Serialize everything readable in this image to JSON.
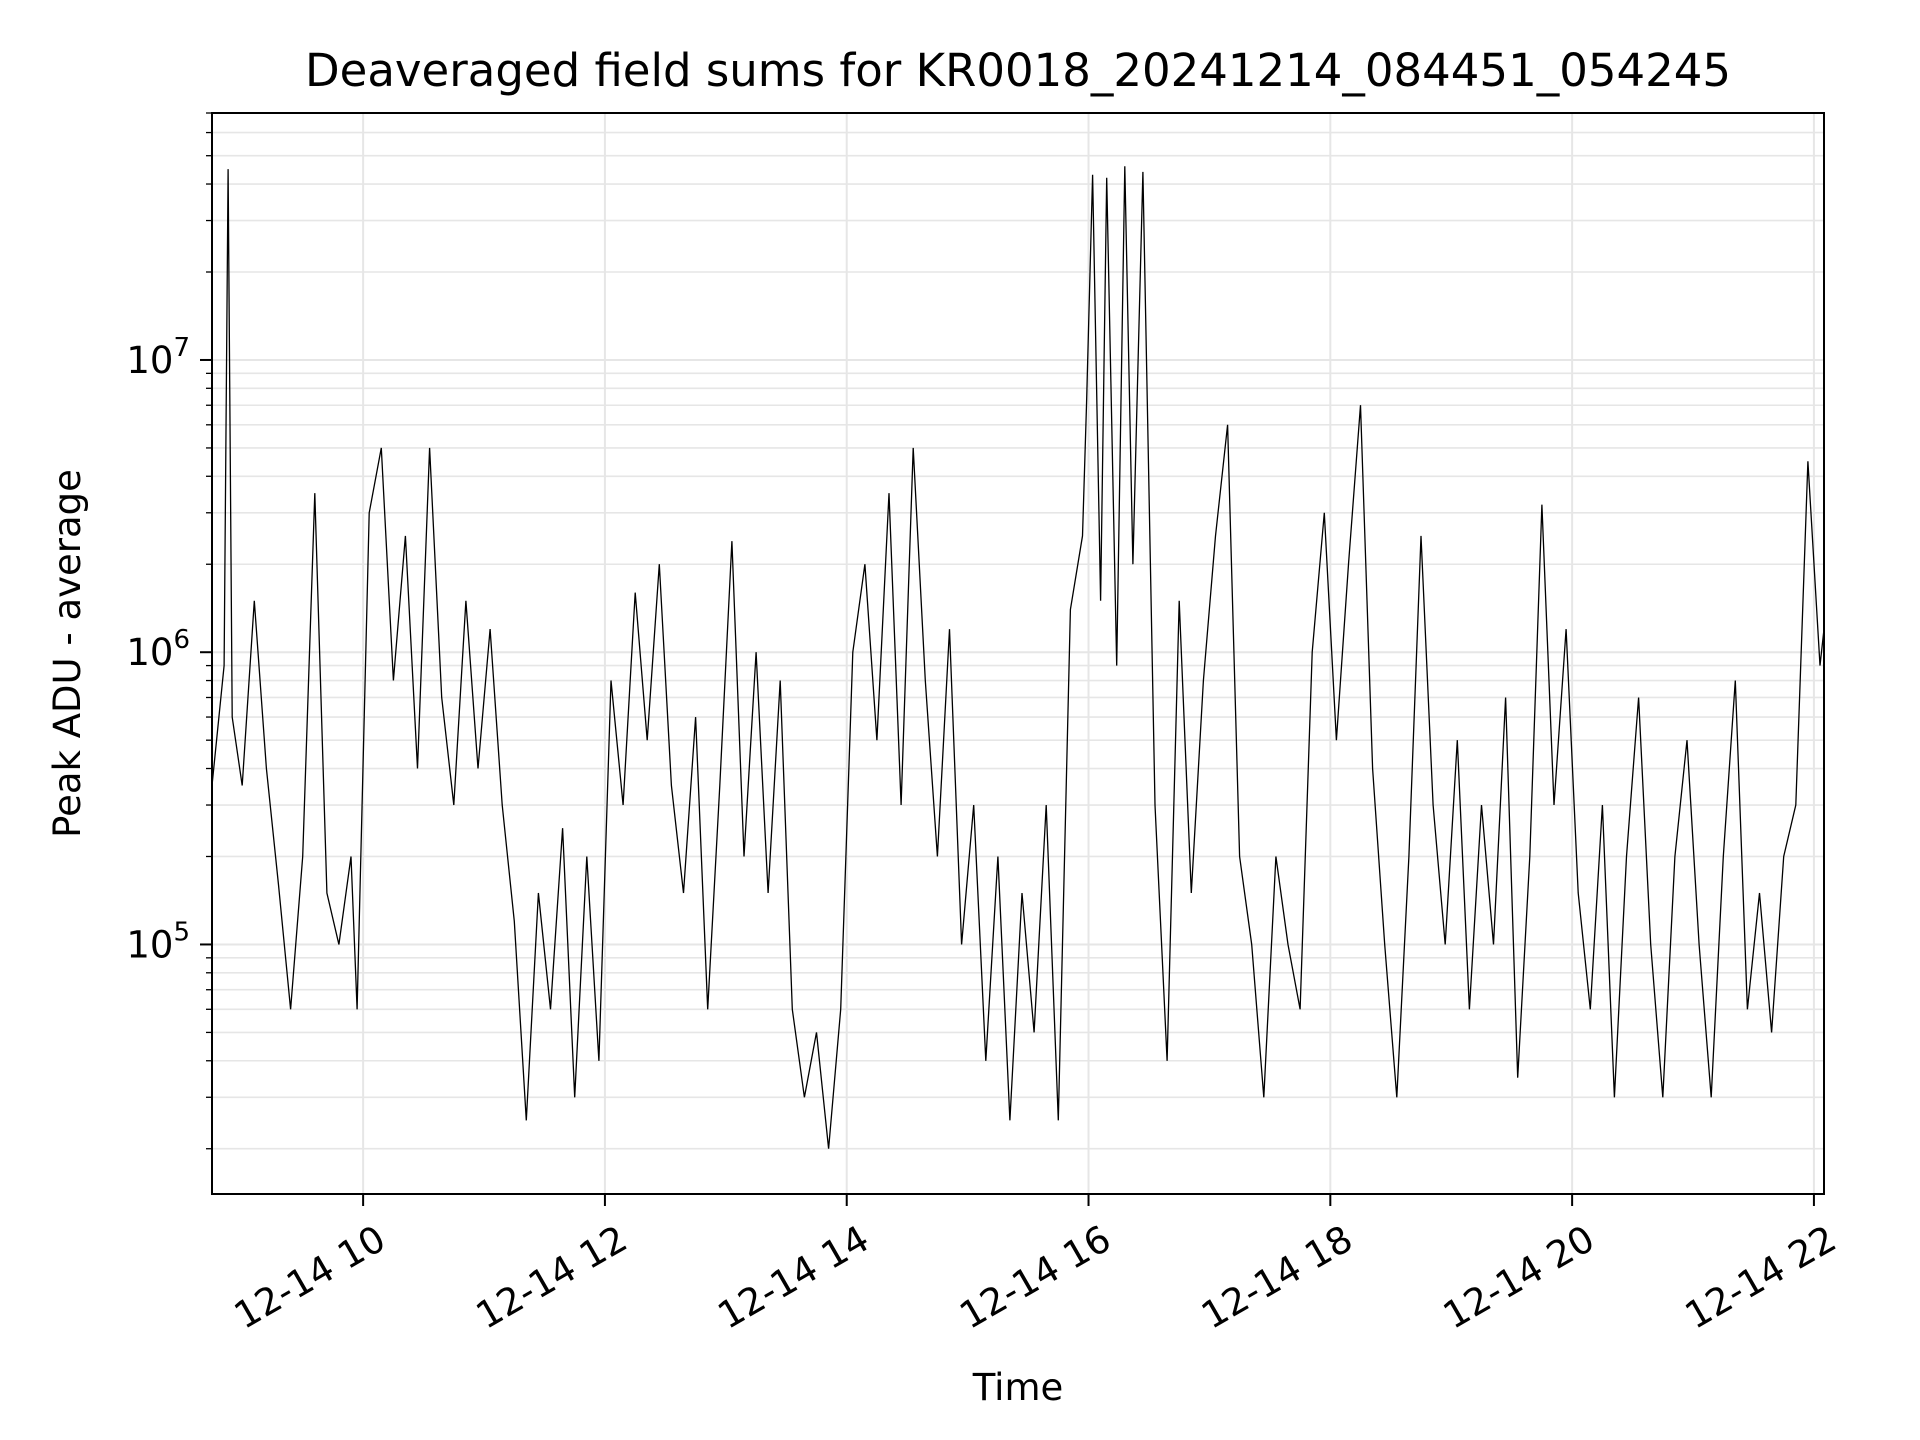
{
  "chart_data": {
    "type": "line",
    "title": "Deaveraged field sums for KR0018_20241214_084451_054245",
    "xlabel": "Time",
    "ylabel": "Peak ADU - average",
    "x_axis": {
      "kind": "time",
      "range": [
        "2024-12-14 08:45",
        "2024-12-14 22:05"
      ],
      "ticks": [
        {
          "time": "2024-12-14 10:00",
          "label": "12-14 10"
        },
        {
          "time": "2024-12-14 12:00",
          "label": "12-14 12"
        },
        {
          "time": "2024-12-14 14:00",
          "label": "12-14 14"
        },
        {
          "time": "2024-12-14 16:00",
          "label": "12-14 16"
        },
        {
          "time": "2024-12-14 18:00",
          "label": "12-14 18"
        },
        {
          "time": "2024-12-14 20:00",
          "label": "12-14 20"
        },
        {
          "time": "2024-12-14 22:00",
          "label": "12-14 22"
        }
      ]
    },
    "y_axis": {
      "scale": "log",
      "range": [
        14000,
        70000000
      ],
      "ticks": [
        {
          "value": 100000,
          "base": "10",
          "exp": "5"
        },
        {
          "value": 1000000,
          "base": "10",
          "exp": "6"
        },
        {
          "value": 10000000,
          "base": "10",
          "exp": "7"
        }
      ]
    },
    "grid": true,
    "line_color": "#000000",
    "series": [
      {
        "points": [
          [
            "2024-12-14 08:45",
            350000
          ],
          [
            "2024-12-14 08:51",
            900000
          ],
          [
            "2024-12-14 08:53",
            45000000
          ],
          [
            "2024-12-14 08:55",
            600000
          ],
          [
            "2024-12-14 09:00",
            350000
          ],
          [
            "2024-12-14 09:06",
            1500000
          ],
          [
            "2024-12-14 09:12",
            400000
          ],
          [
            "2024-12-14 09:18",
            160000
          ],
          [
            "2024-12-14 09:24",
            60000
          ],
          [
            "2024-12-14 09:30",
            200000
          ],
          [
            "2024-12-14 09:36",
            3500000
          ],
          [
            "2024-12-14 09:42",
            150000
          ],
          [
            "2024-12-14 09:48",
            100000
          ],
          [
            "2024-12-14 09:54",
            200000
          ],
          [
            "2024-12-14 09:57",
            60000
          ],
          [
            "2024-12-14 10:03",
            3000000
          ],
          [
            "2024-12-14 10:09",
            5000000
          ],
          [
            "2024-12-14 10:15",
            800000
          ],
          [
            "2024-12-14 10:21",
            2500000
          ],
          [
            "2024-12-14 10:27",
            400000
          ],
          [
            "2024-12-14 10:33",
            5000000
          ],
          [
            "2024-12-14 10:39",
            700000
          ],
          [
            "2024-12-14 10:45",
            300000
          ],
          [
            "2024-12-14 10:51",
            1500000
          ],
          [
            "2024-12-14 10:57",
            400000
          ],
          [
            "2024-12-14 11:03",
            1200000
          ],
          [
            "2024-12-14 11:09",
            300000
          ],
          [
            "2024-12-14 11:15",
            120000
          ],
          [
            "2024-12-14 11:21",
            25000
          ],
          [
            "2024-12-14 11:27",
            150000
          ],
          [
            "2024-12-14 11:33",
            60000
          ],
          [
            "2024-12-14 11:39",
            250000
          ],
          [
            "2024-12-14 11:45",
            30000
          ],
          [
            "2024-12-14 11:51",
            200000
          ],
          [
            "2024-12-14 11:57",
            40000
          ],
          [
            "2024-12-14 12:03",
            800000
          ],
          [
            "2024-12-14 12:09",
            300000
          ],
          [
            "2024-12-14 12:15",
            1600000
          ],
          [
            "2024-12-14 12:21",
            500000
          ],
          [
            "2024-12-14 12:27",
            2000000
          ],
          [
            "2024-12-14 12:33",
            350000
          ],
          [
            "2024-12-14 12:39",
            150000
          ],
          [
            "2024-12-14 12:45",
            600000
          ],
          [
            "2024-12-14 12:51",
            60000
          ],
          [
            "2024-12-14 12:57",
            350000
          ],
          [
            "2024-12-14 13:03",
            2400000
          ],
          [
            "2024-12-14 13:09",
            200000
          ],
          [
            "2024-12-14 13:15",
            1000000
          ],
          [
            "2024-12-14 13:21",
            150000
          ],
          [
            "2024-12-14 13:27",
            800000
          ],
          [
            "2024-12-14 13:33",
            60000
          ],
          [
            "2024-12-14 13:39",
            30000
          ],
          [
            "2024-12-14 13:45",
            50000
          ],
          [
            "2024-12-14 13:51",
            20000
          ],
          [
            "2024-12-14 13:57",
            60000
          ],
          [
            "2024-12-14 14:03",
            1000000
          ],
          [
            "2024-12-14 14:09",
            2000000
          ],
          [
            "2024-12-14 14:15",
            500000
          ],
          [
            "2024-12-14 14:21",
            3500000
          ],
          [
            "2024-12-14 14:27",
            300000
          ],
          [
            "2024-12-14 14:33",
            5000000
          ],
          [
            "2024-12-14 14:39",
            800000
          ],
          [
            "2024-12-14 14:45",
            200000
          ],
          [
            "2024-12-14 14:51",
            1200000
          ],
          [
            "2024-12-14 14:57",
            100000
          ],
          [
            "2024-12-14 15:03",
            300000
          ],
          [
            "2024-12-14 15:09",
            40000
          ],
          [
            "2024-12-14 15:15",
            200000
          ],
          [
            "2024-12-14 15:21",
            25000
          ],
          [
            "2024-12-14 15:27",
            150000
          ],
          [
            "2024-12-14 15:33",
            50000
          ],
          [
            "2024-12-14 15:39",
            300000
          ],
          [
            "2024-12-14 15:45",
            25000
          ],
          [
            "2024-12-14 15:51",
            1400000
          ],
          [
            "2024-12-14 15:57",
            2500000
          ],
          [
            "2024-12-14 15:59",
            7000000
          ],
          [
            "2024-12-14 16:02",
            43000000
          ],
          [
            "2024-12-14 16:06",
            1500000
          ],
          [
            "2024-12-14 16:09",
            42000000
          ],
          [
            "2024-12-14 16:14",
            900000
          ],
          [
            "2024-12-14 16:18",
            46000000
          ],
          [
            "2024-12-14 16:22",
            2000000
          ],
          [
            "2024-12-14 16:27",
            44000000
          ],
          [
            "2024-12-14 16:33",
            300000
          ],
          [
            "2024-12-14 16:39",
            40000
          ],
          [
            "2024-12-14 16:45",
            1500000
          ],
          [
            "2024-12-14 16:51",
            150000
          ],
          [
            "2024-12-14 16:57",
            800000
          ],
          [
            "2024-12-14 17:03",
            2500000
          ],
          [
            "2024-12-14 17:09",
            6000000
          ],
          [
            "2024-12-14 17:15",
            200000
          ],
          [
            "2024-12-14 17:21",
            100000
          ],
          [
            "2024-12-14 17:27",
            30000
          ],
          [
            "2024-12-14 17:33",
            200000
          ],
          [
            "2024-12-14 17:39",
            100000
          ],
          [
            "2024-12-14 17:45",
            60000
          ],
          [
            "2024-12-14 17:51",
            1000000
          ],
          [
            "2024-12-14 17:57",
            3000000
          ],
          [
            "2024-12-14 18:03",
            500000
          ],
          [
            "2024-12-14 18:09",
            2000000
          ],
          [
            "2024-12-14 18:15",
            7000000
          ],
          [
            "2024-12-14 18:21",
            400000
          ],
          [
            "2024-12-14 18:27",
            100000
          ],
          [
            "2024-12-14 18:33",
            30000
          ],
          [
            "2024-12-14 18:39",
            200000
          ],
          [
            "2024-12-14 18:45",
            2500000
          ],
          [
            "2024-12-14 18:51",
            300000
          ],
          [
            "2024-12-14 18:57",
            100000
          ],
          [
            "2024-12-14 19:03",
            500000
          ],
          [
            "2024-12-14 19:09",
            60000
          ],
          [
            "2024-12-14 19:15",
            300000
          ],
          [
            "2024-12-14 19:21",
            100000
          ],
          [
            "2024-12-14 19:27",
            700000
          ],
          [
            "2024-12-14 19:33",
            35000
          ],
          [
            "2024-12-14 19:39",
            200000
          ],
          [
            "2024-12-14 19:45",
            3200000
          ],
          [
            "2024-12-14 19:51",
            300000
          ],
          [
            "2024-12-14 19:57",
            1200000
          ],
          [
            "2024-12-14 20:03",
            150000
          ],
          [
            "2024-12-14 20:09",
            60000
          ],
          [
            "2024-12-14 20:15",
            300000
          ],
          [
            "2024-12-14 20:21",
            30000
          ],
          [
            "2024-12-14 20:27",
            200000
          ],
          [
            "2024-12-14 20:33",
            700000
          ],
          [
            "2024-12-14 20:39",
            100000
          ],
          [
            "2024-12-14 20:45",
            30000
          ],
          [
            "2024-12-14 20:51",
            200000
          ],
          [
            "2024-12-14 20:57",
            500000
          ],
          [
            "2024-12-14 21:03",
            100000
          ],
          [
            "2024-12-14 21:09",
            30000
          ],
          [
            "2024-12-14 21:15",
            200000
          ],
          [
            "2024-12-14 21:21",
            800000
          ],
          [
            "2024-12-14 21:27",
            60000
          ],
          [
            "2024-12-14 21:33",
            150000
          ],
          [
            "2024-12-14 21:39",
            50000
          ],
          [
            "2024-12-14 21:45",
            200000
          ],
          [
            "2024-12-14 21:51",
            300000
          ],
          [
            "2024-12-14 21:57",
            4500000
          ],
          [
            "2024-12-14 22:03",
            900000
          ],
          [
            "2024-12-14 22:05",
            1200000
          ]
        ]
      }
    ]
  }
}
